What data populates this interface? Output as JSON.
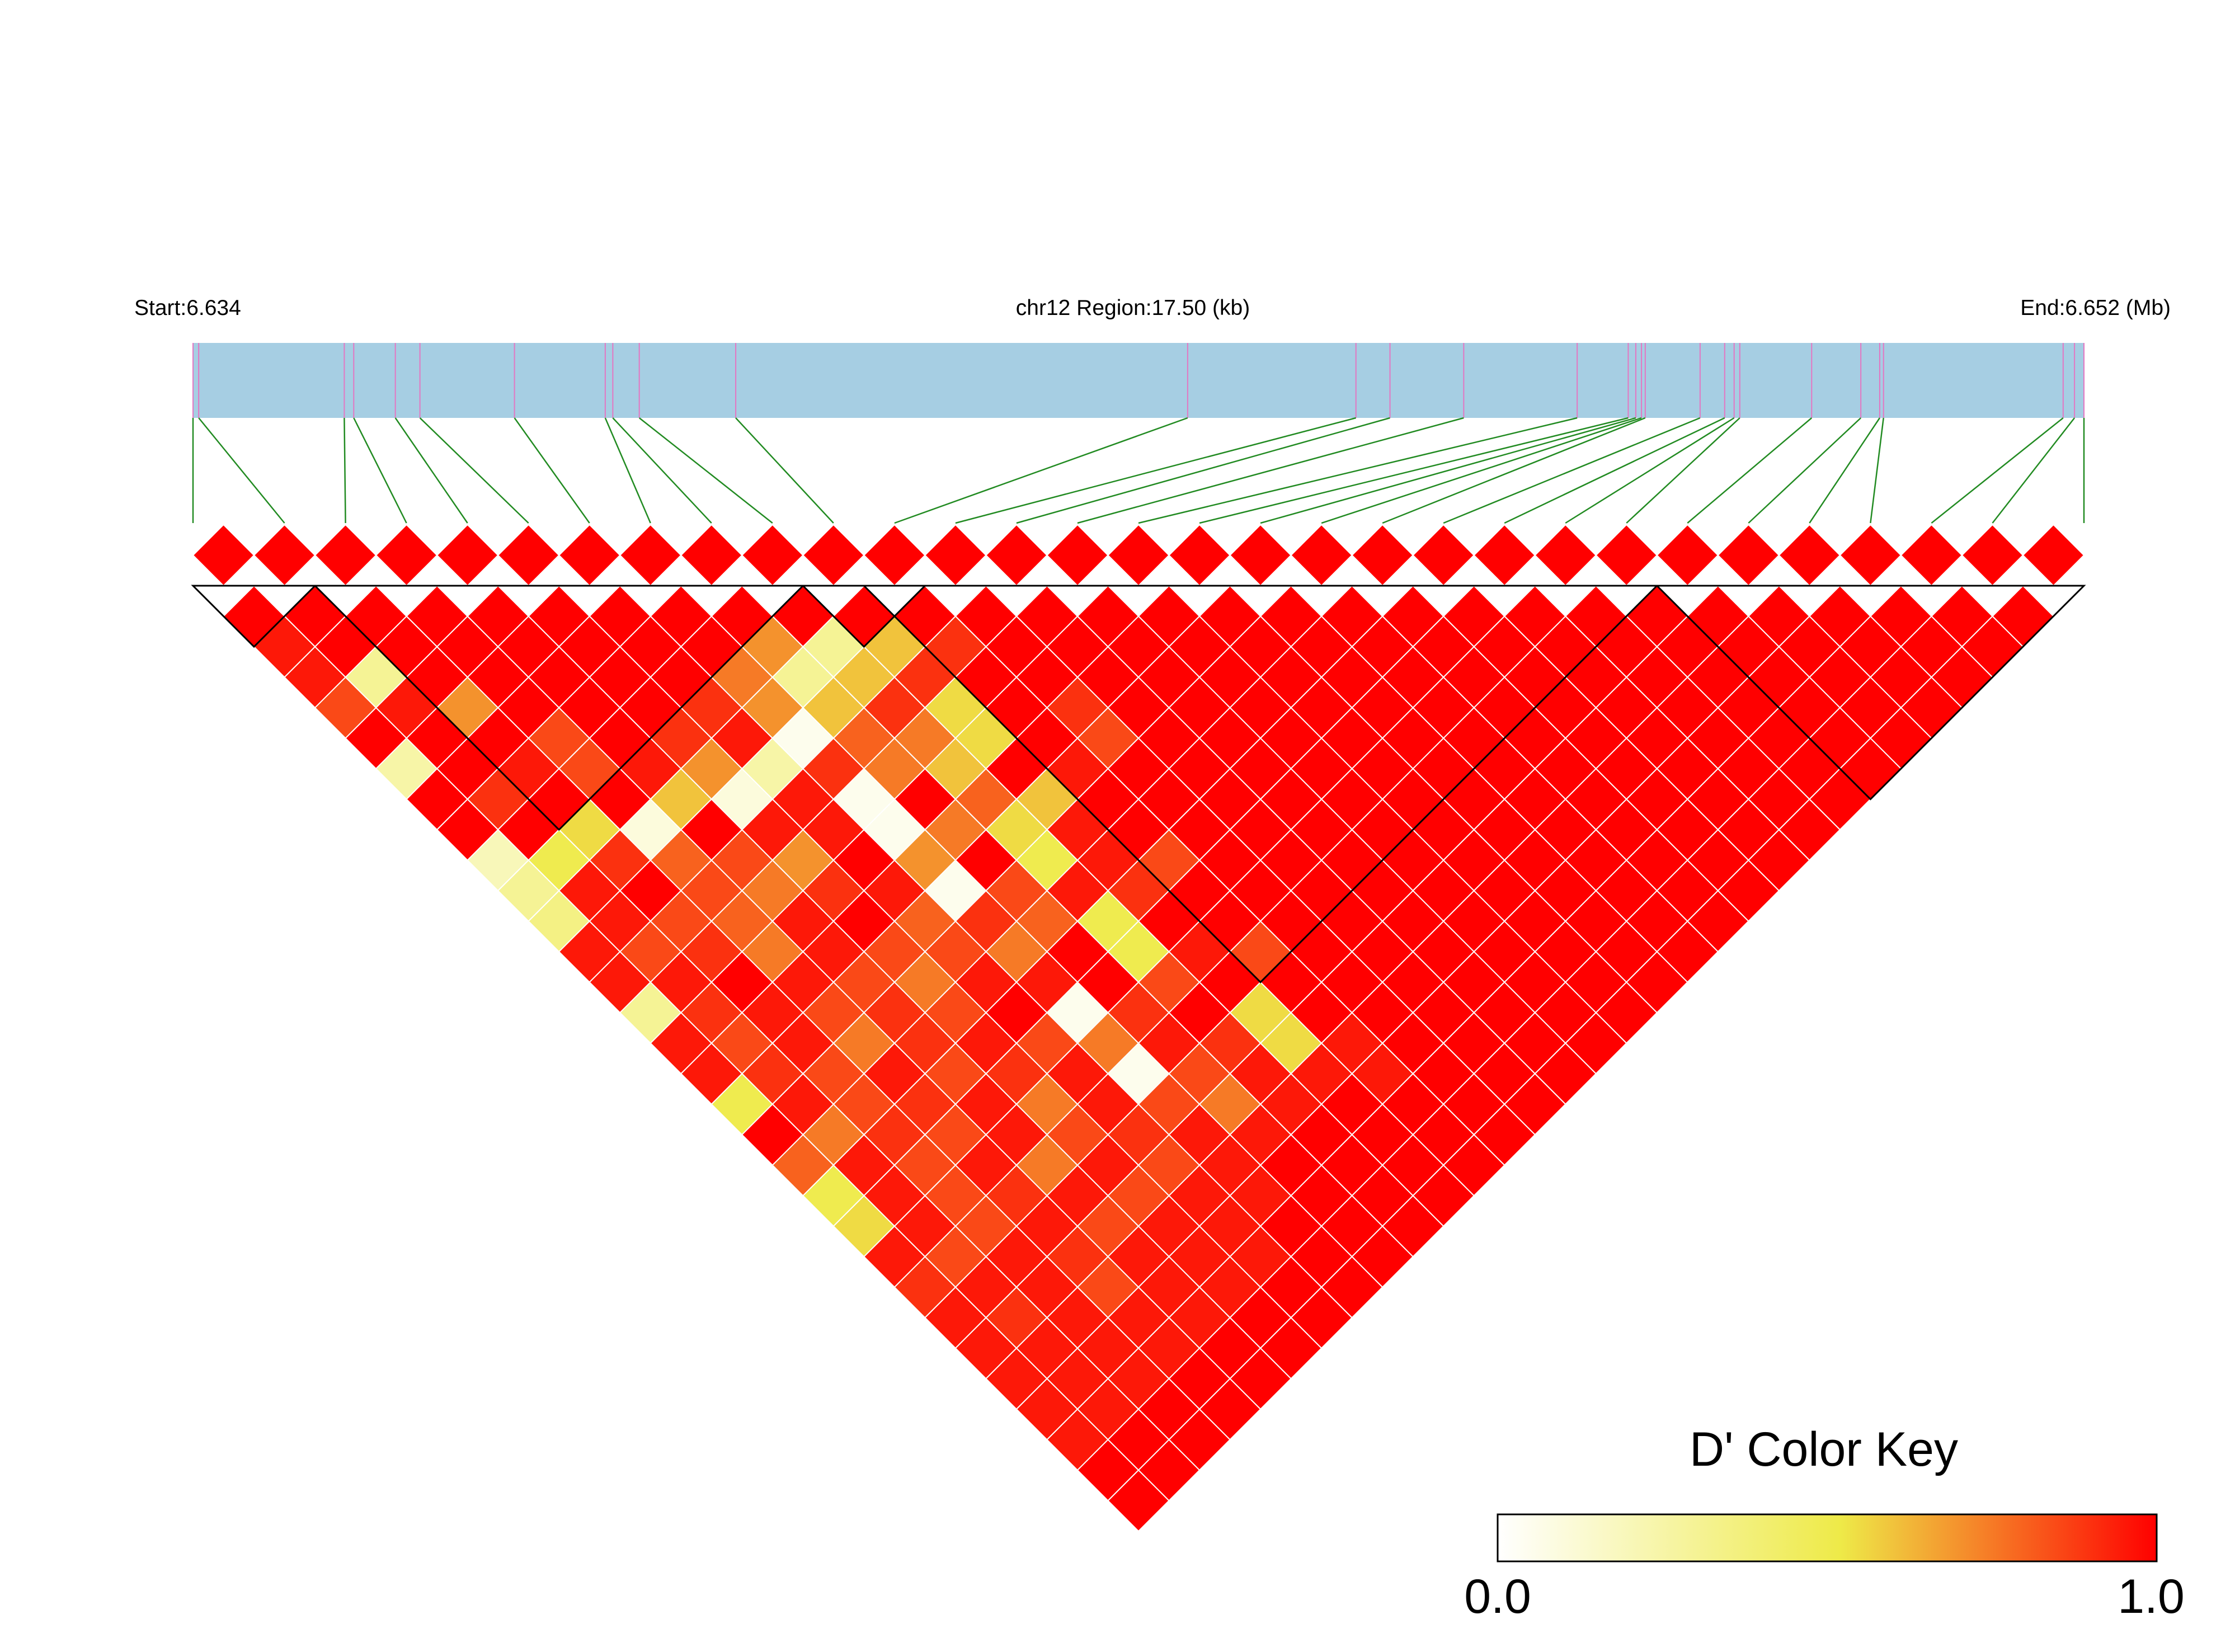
{
  "header": {
    "start_label": "Start:6.634",
    "region_label": "chr12 Region:17.50 (kb)",
    "end_label": "End:6.652 (Mb)"
  },
  "colors": {
    "track_fill": "#a6cee3",
    "snp_tick": "#e377c2",
    "connector": "#228b22",
    "block_outline": "#000000",
    "cell_grid": "#ffffff",
    "key_low": "#ffffff",
    "key_mid": "#eeea48",
    "key_high": "#ff0000"
  },
  "legend": {
    "title": "D' Color Key",
    "min_label": "0.0",
    "max_label": "1.0"
  },
  "chart_data": {
    "type": "heatmap",
    "title": "",
    "metric": "D'",
    "region_start_mb": 6.634,
    "region_end_mb": 6.652,
    "region_length_kb": 17.5,
    "chromosome": "chr12",
    "n_snps": 31,
    "snp_relative_positions": [
      0.0,
      0.003,
      0.08,
      0.085,
      0.107,
      0.12,
      0.17,
      0.218,
      0.222,
      0.236,
      0.287,
      0.526,
      0.615,
      0.633,
      0.672,
      0.732,
      0.759,
      0.763,
      0.766,
      0.768,
      0.797,
      0.81,
      0.815,
      0.818,
      0.856,
      0.882,
      0.892,
      0.894,
      0.989,
      0.995,
      1.0
    ],
    "ld_blocks": [
      [
        0,
        1
      ],
      [
        2,
        9
      ],
      [
        10,
        11
      ],
      [
        11,
        23
      ],
      [
        24,
        30
      ]
    ],
    "value_range": [
      0.0,
      1.0
    ],
    "dprime_rows": [
      [
        1,
        1,
        1,
        1,
        1,
        1,
        1,
        1,
        1,
        1,
        1,
        1,
        1,
        1,
        1,
        1,
        1,
        1,
        1,
        1,
        1,
        1,
        1,
        1,
        1,
        1,
        1,
        1,
        1,
        1
      ],
      [
        0.95,
        1,
        1,
        1,
        1,
        1,
        1,
        1,
        0.7,
        0.3,
        0.6,
        0.9,
        1,
        1,
        1,
        1,
        1,
        1,
        1,
        1,
        1,
        1,
        1,
        1,
        1,
        1,
        1,
        1,
        1
      ],
      [
        0.95,
        0.3,
        1,
        1,
        1,
        1,
        1,
        0.75,
        0.3,
        0.6,
        0.9,
        1,
        1,
        1,
        1,
        1,
        1,
        1,
        1,
        1,
        1,
        1,
        1,
        1,
        1,
        1,
        1,
        1
      ],
      [
        0.85,
        0.95,
        0.7,
        1,
        1,
        1,
        0.9,
        0.7,
        0.6,
        0.9,
        0.55,
        1,
        0.9,
        1,
        1,
        1,
        1,
        1,
        1,
        1,
        1,
        1,
        1,
        1,
        1,
        1,
        1
      ],
      [
        1,
        1,
        1,
        0.85,
        1,
        0.9,
        0.95,
        0.05,
        0.8,
        0.75,
        0.55,
        1,
        0.85,
        1,
        1,
        1,
        1,
        1,
        1,
        1,
        1,
        1,
        1,
        1,
        1,
        1
      ],
      [
        0.25,
        1,
        0.95,
        0.85,
        0.95,
        0.7,
        0.25,
        0.9,
        0.75,
        0.6,
        1,
        0.95,
        1,
        1,
        1,
        1,
        1,
        1,
        1,
        1,
        1,
        1,
        1,
        1,
        1
      ],
      [
        1,
        0.9,
        1,
        1,
        0.6,
        0.1,
        0.95,
        0.05,
        1,
        0.8,
        0.6,
        1,
        1,
        1,
        1,
        1,
        1,
        1,
        1,
        1,
        1,
        1,
        1,
        1
      ],
      [
        1,
        1,
        0.55,
        0.1,
        1,
        0.95,
        0.95,
        0.05,
        0.75,
        0.55,
        0.95,
        1,
        1,
        1,
        1,
        1,
        1,
        1,
        1,
        1,
        1,
        1,
        1
      ],
      [
        0.2,
        0.5,
        0.9,
        0.8,
        0.85,
        0.7,
        1,
        0.7,
        1,
        0.5,
        0.95,
        0.85,
        1,
        1,
        1,
        1,
        1,
        1,
        1,
        1,
        1,
        1
      ],
      [
        0.3,
        0.95,
        1,
        0.85,
        0.75,
        0.9,
        0.95,
        0.05,
        0.85,
        0.95,
        0.9,
        1,
        1,
        1,
        1,
        1,
        1,
        1,
        1,
        1,
        1
      ],
      [
        0.35,
        0.95,
        0.85,
        0.8,
        0.95,
        1,
        0.8,
        0.9,
        0.8,
        0.5,
        1,
        1,
        1,
        1,
        1,
        1,
        1,
        1,
        1,
        1
      ],
      [
        0.95,
        0.85,
        0.9,
        0.75,
        0.95,
        0.85,
        0.85,
        0.75,
        1,
        0.5,
        0.95,
        0.85,
        1,
        1,
        1,
        1,
        1,
        1,
        1
      ],
      [
        0.95,
        0.95,
        1,
        0.95,
        0.85,
        0.75,
        0.95,
        0.95,
        1,
        0.85,
        1,
        1,
        1,
        1,
        1,
        1,
        1,
        1
      ],
      [
        0.3,
        0.9,
        0.95,
        0.85,
        0.9,
        0.85,
        1,
        0.05,
        0.9,
        1,
        0.55,
        1,
        1,
        1,
        1,
        1,
        1
      ],
      [
        0.95,
        0.85,
        0.95,
        0.75,
        0.9,
        0.95,
        0.85,
        0.75,
        0.95,
        0.9,
        0.55,
        0.95,
        1,
        1,
        1,
        1
      ],
      [
        0.95,
        0.9,
        0.85,
        0.95,
        0.85,
        0.9,
        0.95,
        0.05,
        0.85,
        0.95,
        0.95,
        0.95,
        1,
        1,
        1
      ],
      [
        0.5,
        0.95,
        0.85,
        0.9,
        0.95,
        0.75,
        0.95,
        0.85,
        0.75,
        0.95,
        1,
        1,
        1,
        1
      ],
      [
        1,
        0.75,
        0.9,
        0.85,
        0.95,
        0.85,
        0.9,
        0.95,
        0.95,
        1,
        1,
        1,
        1
      ],
      [
        0.8,
        0.95,
        0.85,
        0.95,
        0.75,
        0.95,
        0.85,
        0.95,
        1,
        1,
        1,
        1
      ],
      [
        0.5,
        0.95,
        0.85,
        0.9,
        0.95,
        0.85,
        0.95,
        0.95,
        1,
        1,
        1
      ],
      [
        0.55,
        0.95,
        0.85,
        0.95,
        0.85,
        0.95,
        0.95,
        1,
        1,
        1
      ],
      [
        0.95,
        0.85,
        0.95,
        0.9,
        0.95,
        0.95,
        0.95,
        1,
        1
      ],
      [
        0.9,
        0.95,
        0.95,
        0.85,
        0.95,
        0.95,
        1,
        1
      ],
      [
        0.95,
        0.9,
        0.95,
        0.95,
        0.95,
        1,
        1
      ],
      [
        0.95,
        0.95,
        0.95,
        0.95,
        1,
        1
      ],
      [
        0.95,
        0.95,
        0.95,
        1,
        1
      ],
      [
        0.95,
        0.95,
        1,
        1
      ],
      [
        0.95,
        1,
        1
      ],
      [
        1,
        1
      ],
      [
        1
      ]
    ]
  }
}
